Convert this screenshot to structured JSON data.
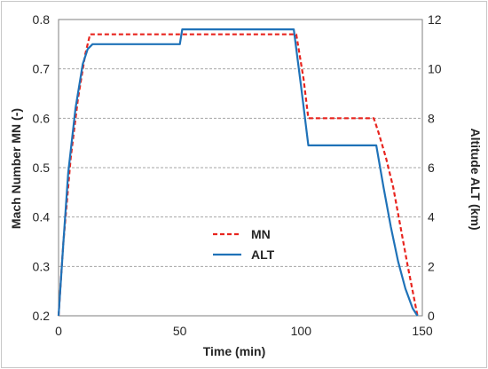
{
  "chart_data": {
    "type": "line",
    "xlabel": "Time (min)",
    "ylabel_left": "Mach Number MN (-)",
    "ylabel_right": "Altitude ALT (km)",
    "xlim": [
      0,
      150
    ],
    "ylim_left": [
      0.2,
      0.8
    ],
    "ylim_right": [
      0,
      12
    ],
    "x_ticks": [
      "0",
      "50",
      "100",
      "150"
    ],
    "y_left_ticks": [
      "0.2",
      "0.3",
      "0.4",
      "0.5",
      "0.6",
      "0.7",
      "0.8"
    ],
    "y_right_ticks": [
      "0",
      "2",
      "4",
      "6",
      "8",
      "10",
      "12"
    ],
    "grid": "horizontal",
    "legend_position": "center-left",
    "series": [
      {
        "name": "MN",
        "axis": "left",
        "style": "dashed",
        "color": "#e8251f",
        "points": [
          [
            0,
            0.2
          ],
          [
            2,
            0.35
          ],
          [
            5,
            0.52
          ],
          [
            8,
            0.64
          ],
          [
            11,
            0.73
          ],
          [
            13,
            0.77
          ],
          [
            98,
            0.77
          ],
          [
            101,
            0.68
          ],
          [
            103,
            0.6
          ],
          [
            130,
            0.6
          ],
          [
            132,
            0.57
          ],
          [
            135,
            0.52
          ],
          [
            138,
            0.46
          ],
          [
            141,
            0.38
          ],
          [
            144,
            0.3
          ],
          [
            146,
            0.25
          ],
          [
            148,
            0.2
          ]
        ]
      },
      {
        "name": "ALT",
        "axis": "right",
        "style": "solid",
        "color": "#1f72b8",
        "points": [
          [
            0,
            0
          ],
          [
            2,
            3
          ],
          [
            4,
            5.8
          ],
          [
            7,
            8.4
          ],
          [
            10,
            10.2
          ],
          [
            12,
            10.8
          ],
          [
            14,
            11
          ],
          [
            50,
            11
          ],
          [
            51,
            11.6
          ],
          [
            97,
            11.6
          ],
          [
            100,
            9.3
          ],
          [
            103,
            6.9
          ],
          [
            131,
            6.9
          ],
          [
            134,
            5.2
          ],
          [
            137,
            3.6
          ],
          [
            140,
            2.2
          ],
          [
            143,
            1.1
          ],
          [
            146,
            0.3
          ],
          [
            148,
            0
          ]
        ]
      }
    ]
  }
}
